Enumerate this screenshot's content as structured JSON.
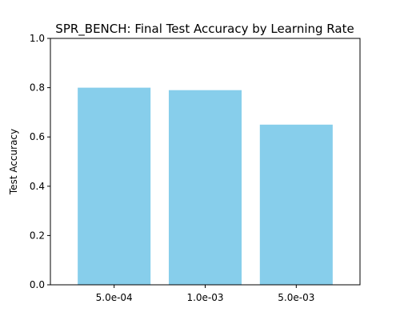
{
  "chart_data": {
    "type": "bar",
    "title": "SPR_BENCH: Final Test Accuracy by Learning Rate",
    "xlabel": "",
    "ylabel": "Test Accuracy",
    "categories": [
      "5.0e-04",
      "1.0e-03",
      "5.0e-03"
    ],
    "values": [
      0.8,
      0.79,
      0.65
    ],
    "ylim": [
      0,
      1.0
    ],
    "yticks": [
      "0.0",
      "0.2",
      "0.4",
      "0.6",
      "0.8",
      "1.0"
    ],
    "bar_color": "#87ceeb",
    "grid": false,
    "legend": "none"
  }
}
